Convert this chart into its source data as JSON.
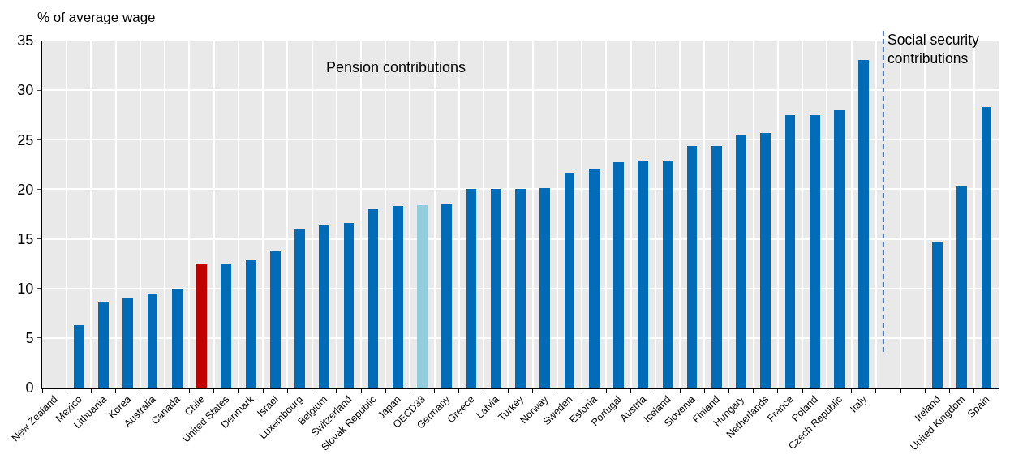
{
  "chart_data": {
    "type": "bar",
    "ylabel": "% of average wage",
    "categories": [
      "New Zealand",
      "Mexico",
      "Lithuania",
      "Korea",
      "Australia",
      "Canada",
      "Chile",
      "United States",
      "Denmark",
      "Israel",
      "Luxembourg",
      "Belgium",
      "Switzerland",
      "Slovak Republic",
      "Japan",
      "OECD33",
      "Germany",
      "Greece",
      "Latvia",
      "Turkey",
      "Norway",
      "Sweden",
      "Estonia",
      "Portugal",
      "Austria",
      "Iceland",
      "Slovenia",
      "Finland",
      "Hungary",
      "Netherlands",
      "France",
      "Poland",
      "Czech Republic",
      "Italy",
      null,
      null,
      "Ireland",
      "United Kingdom",
      "Spain"
    ],
    "values": [
      0,
      6.3,
      8.7,
      9.0,
      9.5,
      9.9,
      12.4,
      12.4,
      12.8,
      13.8,
      16.0,
      16.4,
      16.6,
      18.0,
      18.3,
      18.4,
      18.6,
      20.0,
      20.0,
      20.0,
      20.1,
      21.7,
      22.0,
      22.7,
      22.8,
      22.9,
      24.4,
      24.4,
      25.5,
      25.7,
      27.5,
      27.5,
      28.0,
      33.0,
      null,
      null,
      14.7,
      20.4,
      28.3
    ],
    "colors": [
      "#006bb6",
      "#006bb6",
      "#006bb6",
      "#006bb6",
      "#006bb6",
      "#006bb6",
      "#c00000",
      "#006bb6",
      "#006bb6",
      "#006bb6",
      "#006bb6",
      "#006bb6",
      "#006bb6",
      "#006bb6",
      "#006bb6",
      "#93cddd",
      "#006bb6",
      "#006bb6",
      "#006bb6",
      "#006bb6",
      "#006bb6",
      "#006bb6",
      "#006bb6",
      "#006bb6",
      "#006bb6",
      "#006bb6",
      "#006bb6",
      "#006bb6",
      "#006bb6",
      "#006bb6",
      "#006bb6",
      "#006bb6",
      "#006bb6",
      "#006bb6",
      "#006bb6",
      "#006bb6",
      "#006bb6",
      "#006bb6",
      "#006bb6"
    ],
    "ylim": [
      0,
      35
    ],
    "yticks": [
      0,
      5,
      10,
      15,
      20,
      25,
      30,
      35
    ],
    "grid": true,
    "legend": false,
    "annotations": [
      "Pension contributions",
      "Social security contributions"
    ]
  }
}
